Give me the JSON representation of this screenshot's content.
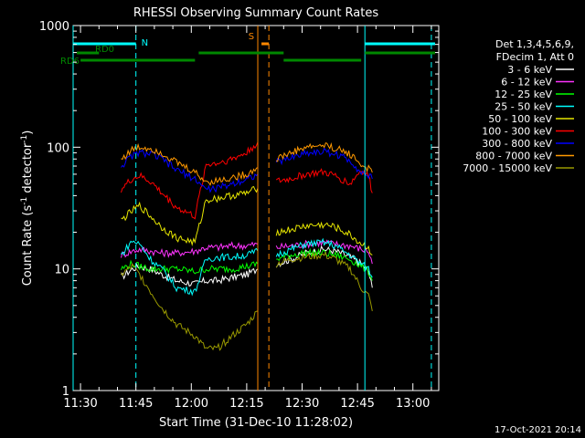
{
  "chart_data": {
    "type": "line",
    "title": "RHESSI Observing Summary Count Rates",
    "xlabel": "Start Time (31-Dec-10 11:28:02)",
    "ylabel": "Count Rate (s⁻¹ detector⁻¹)",
    "ylabel_parts": {
      "pre": "Count Rate (s",
      "sup1": "-1",
      "mid": " detector",
      "sup2": "-1",
      "post": ")"
    },
    "footer": "17-Oct-2021 20:14",
    "yscale": "log",
    "ylim": [
      1,
      1000
    ],
    "xlim": [
      "11:28",
      "13:07"
    ],
    "x_ticks": [
      "11:30",
      "11:45",
      "12:00",
      "12:15",
      "12:30",
      "12:45",
      "13:00"
    ],
    "y_ticks": [
      "1",
      "10",
      "100",
      "1000"
    ],
    "legend": {
      "header": [
        "Det 1,3,4,5,6,9,",
        "FDecim 1, Att 0"
      ],
      "placement": "right"
    },
    "series": [
      {
        "name": "3 - 6 keV",
        "color": "#ffffff",
        "points": [
          [
            "11:41",
            8.5
          ],
          [
            "11:44",
            10
          ],
          [
            "11:46",
            10.5
          ],
          [
            "11:49",
            10
          ],
          [
            "11:52",
            9
          ],
          [
            "11:56",
            8
          ],
          [
            "12:01",
            7.5
          ],
          [
            "12:04",
            8
          ],
          [
            "12:07",
            8
          ],
          [
            "12:11",
            8.5
          ],
          [
            "12:15",
            9
          ],
          [
            "12:18",
            10
          ],
          [
            "12:23",
            11
          ],
          [
            "12:27",
            12
          ],
          [
            "12:31",
            13.5
          ],
          [
            "12:36",
            14.5
          ],
          [
            "12:39",
            14
          ],
          [
            "12:43",
            12.5
          ],
          [
            "12:46",
            11
          ],
          [
            "12:48",
            9.5
          ],
          [
            "12:49",
            7
          ]
        ]
      },
      {
        "name": "6 - 12 keV",
        "color": "#ff33ff",
        "points": [
          [
            "11:41",
            13
          ],
          [
            "11:44",
            14
          ],
          [
            "11:46",
            14.5
          ],
          [
            "11:49",
            14
          ],
          [
            "11:52",
            13.5
          ],
          [
            "11:56",
            13.5
          ],
          [
            "12:01",
            14
          ],
          [
            "12:04",
            15
          ],
          [
            "12:07",
            15
          ],
          [
            "12:11",
            15.5
          ],
          [
            "12:15",
            15.5
          ],
          [
            "12:18",
            16
          ],
          [
            "12:23",
            15
          ],
          [
            "12:27",
            15.5
          ],
          [
            "12:31",
            16
          ],
          [
            "12:36",
            16.5
          ],
          [
            "12:39",
            16
          ],
          [
            "12:43",
            15.5
          ],
          [
            "12:46",
            14.5
          ],
          [
            "12:48",
            14
          ],
          [
            "12:49",
            11
          ]
        ]
      },
      {
        "name": "12 - 25 keV",
        "color": "#00ff00",
        "points": [
          [
            "11:41",
            10
          ],
          [
            "11:44",
            11
          ],
          [
            "11:46",
            10.5
          ],
          [
            "11:49",
            10
          ],
          [
            "11:52",
            10
          ],
          [
            "11:56",
            10
          ],
          [
            "12:01",
            9.5
          ],
          [
            "12:04",
            10
          ],
          [
            "12:07",
            10
          ],
          [
            "12:11",
            10
          ],
          [
            "12:15",
            10.5
          ],
          [
            "12:18",
            11
          ],
          [
            "12:23",
            12
          ],
          [
            "12:27",
            13
          ],
          [
            "12:31",
            13.5
          ],
          [
            "12:36",
            13.5
          ],
          [
            "12:39",
            13
          ],
          [
            "12:43",
            12
          ],
          [
            "12:46",
            10.5
          ],
          [
            "12:48",
            9.5
          ],
          [
            "12:49",
            8
          ]
        ]
      },
      {
        "name": "25 - 50 keV",
        "color": "#00ffff",
        "points": [
          [
            "11:41",
            13
          ],
          [
            "11:44",
            17
          ],
          [
            "11:46",
            16
          ],
          [
            "11:49",
            12
          ],
          [
            "11:52",
            10
          ],
          [
            "11:56",
            7
          ],
          [
            "12:01",
            6.5
          ],
          [
            "12:04",
            12
          ],
          [
            "12:07",
            12.5
          ],
          [
            "12:11",
            12.5
          ],
          [
            "12:15",
            13
          ],
          [
            "12:18",
            14
          ],
          [
            "12:23",
            13
          ],
          [
            "12:27",
            14.5
          ],
          [
            "12:31",
            16
          ],
          [
            "12:36",
            16.5
          ],
          [
            "12:39",
            15.5
          ],
          [
            "12:43",
            13
          ],
          [
            "12:46",
            11
          ],
          [
            "12:48",
            10
          ],
          [
            "12:49",
            8.5
          ]
        ]
      },
      {
        "name": "50 - 100 keV",
        "color": "#e6e600",
        "points": [
          [
            "11:41",
            25
          ],
          [
            "11:44",
            30
          ],
          [
            "11:46",
            33
          ],
          [
            "11:49",
            27
          ],
          [
            "11:52",
            22
          ],
          [
            "11:56",
            18
          ],
          [
            "12:01",
            16.5
          ],
          [
            "12:04",
            37
          ],
          [
            "12:07",
            38
          ],
          [
            "12:11",
            40
          ],
          [
            "12:15",
            42
          ],
          [
            "12:18",
            46
          ],
          [
            "12:23",
            20
          ],
          [
            "12:27",
            21
          ],
          [
            "12:31",
            22.5
          ],
          [
            "12:36",
            23
          ],
          [
            "12:39",
            22
          ],
          [
            "12:43",
            19
          ],
          [
            "12:46",
            16
          ],
          [
            "12:48",
            15
          ],
          [
            "12:49",
            13
          ]
        ]
      },
      {
        "name": "100 - 300 keV",
        "color": "#ff0000",
        "points": [
          [
            "11:41",
            45
          ],
          [
            "11:44",
            55
          ],
          [
            "11:46",
            58
          ],
          [
            "11:49",
            52
          ],
          [
            "11:52",
            42
          ],
          [
            "11:56",
            32
          ],
          [
            "12:01",
            27
          ],
          [
            "12:04",
            72
          ],
          [
            "12:07",
            74
          ],
          [
            "12:11",
            80
          ],
          [
            "12:15",
            90
          ],
          [
            "12:18",
            110
          ],
          [
            "12:23",
            52
          ],
          [
            "12:27",
            55
          ],
          [
            "12:31",
            60
          ],
          [
            "12:36",
            62
          ],
          [
            "12:39",
            58
          ],
          [
            "12:43",
            50
          ],
          [
            "12:46",
            65
          ],
          [
            "12:48",
            58
          ],
          [
            "12:49",
            42
          ]
        ]
      },
      {
        "name": "300 - 800 keV",
        "color": "#0000ff",
        "points": [
          [
            "11:41",
            70
          ],
          [
            "11:44",
            85
          ],
          [
            "11:46",
            90
          ],
          [
            "11:49",
            88
          ],
          [
            "11:52",
            80
          ],
          [
            "11:56",
            65
          ],
          [
            "12:01",
            55
          ],
          [
            "12:04",
            45
          ],
          [
            "12:07",
            46
          ],
          [
            "12:11",
            50
          ],
          [
            "12:15",
            55
          ],
          [
            "12:18",
            60
          ],
          [
            "12:23",
            75
          ],
          [
            "12:27",
            82
          ],
          [
            "12:31",
            90
          ],
          [
            "12:36",
            92
          ],
          [
            "12:39",
            88
          ],
          [
            "12:43",
            78
          ],
          [
            "12:46",
            62
          ],
          [
            "12:48",
            58
          ],
          [
            "12:49",
            55
          ]
        ]
      },
      {
        "name": "800 - 7000 keV",
        "color": "#ff9900",
        "points": [
          [
            "11:41",
            80
          ],
          [
            "11:44",
            95
          ],
          [
            "11:46",
            100
          ],
          [
            "11:49",
            98
          ],
          [
            "11:52",
            90
          ],
          [
            "11:56",
            75
          ],
          [
            "12:01",
            62
          ],
          [
            "12:04",
            52
          ],
          [
            "12:07",
            53
          ],
          [
            "12:11",
            56
          ],
          [
            "12:15",
            60
          ],
          [
            "12:18",
            68
          ],
          [
            "12:23",
            80
          ],
          [
            "12:27",
            90
          ],
          [
            "12:31",
            100
          ],
          [
            "12:36",
            104
          ],
          [
            "12:39",
            98
          ],
          [
            "12:43",
            88
          ],
          [
            "12:46",
            72
          ],
          [
            "12:48",
            66
          ],
          [
            "12:49",
            62
          ]
        ]
      },
      {
        "name": "7000 - 15000 keV",
        "color": "#999900",
        "points": [
          [
            "11:41",
            9
          ],
          [
            "11:44",
            10.5
          ],
          [
            "11:46",
            9
          ],
          [
            "11:49",
            6.5
          ],
          [
            "11:52",
            4.8
          ],
          [
            "11:56",
            3.5
          ],
          [
            "12:01",
            2.8
          ],
          [
            "12:04",
            2.2
          ],
          [
            "12:07",
            2.2
          ],
          [
            "12:11",
            2.8
          ],
          [
            "12:15",
            3.5
          ],
          [
            "12:18",
            4.5
          ],
          [
            "12:23",
            11
          ],
          [
            "12:27",
            12
          ],
          [
            "12:31",
            12.5
          ],
          [
            "12:36",
            13
          ],
          [
            "12:39",
            12
          ],
          [
            "12:43",
            10
          ],
          [
            "12:46",
            7
          ],
          [
            "12:48",
            6
          ],
          [
            "12:49",
            4.5
          ]
        ]
      }
    ],
    "attenuator_bars": [
      {
        "label": "RD0",
        "color": "#00ffff",
        "level": "top",
        "ranges": [
          [
            "11:28",
            "11:45"
          ],
          [
            "12:47",
            "13:06"
          ]
        ]
      },
      {
        "label": "RD0",
        "color": "#008800",
        "level": "upper",
        "ranges": [
          [
            "11:29",
            "11:35"
          ],
          [
            "12:02",
            "12:25"
          ],
          [
            "12:47",
            "13:06"
          ]
        ]
      },
      {
        "label": "RD6",
        "color": "#008800",
        "level": "lower",
        "ranges": [
          [
            "11:30",
            "12:01"
          ],
          [
            "12:25",
            "12:46"
          ]
        ]
      },
      {
        "label": "S",
        "color": "#ff8800",
        "level": "top",
        "ranges": [
          [
            "12:19",
            "12:21"
          ]
        ]
      },
      {
        "label": "N",
        "color": "#00ffff",
        "level": "mark",
        "ranges": [
          [
            "11:45",
            "11:45"
          ]
        ]
      }
    ],
    "vertical_markers": [
      {
        "time": "11:28",
        "color": "#00ffff",
        "style": "solid"
      },
      {
        "time": "11:45",
        "color": "#00ffff",
        "style": "dashed"
      },
      {
        "time": "12:18",
        "color": "#ff8800",
        "style": "solid"
      },
      {
        "time": "12:21",
        "color": "#ff8800",
        "style": "dashed"
      },
      {
        "time": "12:47",
        "color": "#00ffff",
        "style": "solid"
      },
      {
        "time": "13:05",
        "color": "#00ffff",
        "style": "dashed"
      }
    ]
  }
}
